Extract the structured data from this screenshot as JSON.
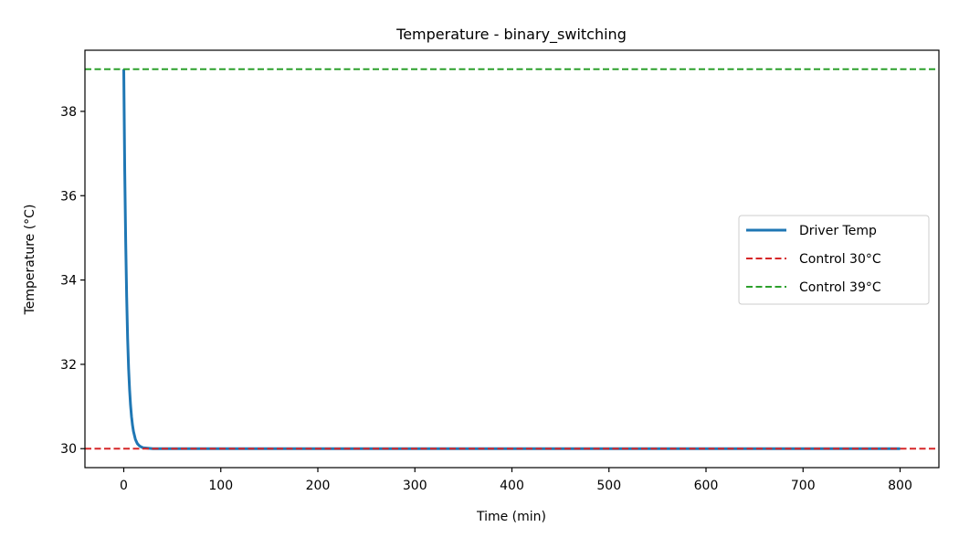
{
  "chart_data": {
    "type": "line",
    "title": "Temperature - binary_switching",
    "xlabel": "Time (min)",
    "ylabel": "Temperature (°C)",
    "xlim": [
      -40,
      840
    ],
    "ylim": [
      29.55,
      39.45
    ],
    "x_ticks": [
      0,
      100,
      200,
      300,
      400,
      500,
      600,
      700,
      800
    ],
    "y_ticks": [
      30,
      32,
      34,
      36,
      38
    ],
    "x_tick_labels": [
      "0",
      "100",
      "200",
      "300",
      "400",
      "500",
      "600",
      "700",
      "800"
    ],
    "y_tick_labels": [
      "30",
      "32",
      "34",
      "36",
      "38"
    ],
    "grid": false,
    "legend_position": "center-right",
    "series": [
      {
        "name": "Driver Temp",
        "color": "#1f77b4",
        "style": "solid",
        "x": [
          0,
          1,
          2,
          3,
          4,
          5,
          6,
          7,
          8,
          9,
          10,
          12,
          14,
          16,
          18,
          20,
          25,
          30,
          40,
          100,
          200,
          300,
          400,
          500,
          600,
          700,
          800
        ],
        "y": [
          39.0,
          36.6,
          34.9,
          33.6,
          32.6,
          31.9,
          31.4,
          31.03,
          30.76,
          30.56,
          30.41,
          30.22,
          30.12,
          30.07,
          30.04,
          30.02,
          30.01,
          30.0,
          30.0,
          30.0,
          30.0,
          30.0,
          30.0,
          30.0,
          30.0,
          30.0,
          30.0
        ]
      },
      {
        "name": "Control 30°C",
        "color": "#d62728",
        "style": "dashed",
        "hline": 30
      },
      {
        "name": "Control 39°C",
        "color": "#2ca02c",
        "style": "dashed",
        "hline": 39
      }
    ]
  }
}
